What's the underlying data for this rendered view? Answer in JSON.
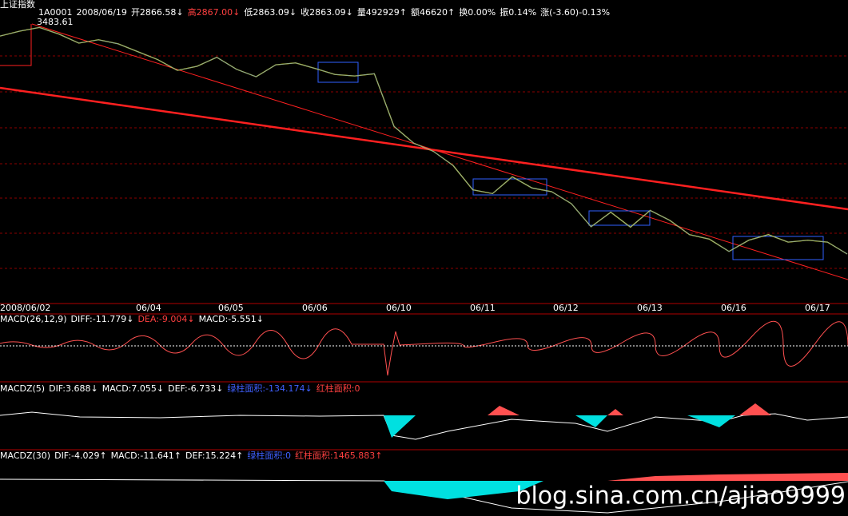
{
  "header": {
    "title": "上证指数",
    "quote": [
      {
        "text": "1A0001",
        "color": "#ffffff"
      },
      {
        "text": "2008/06/19",
        "color": "#ffffff"
      },
      {
        "text": "开2866.58↓",
        "color": "#ffffff"
      },
      {
        "text": "高2867.00↓",
        "color": "#ff4040"
      },
      {
        "text": "低2863.09↓",
        "color": "#ffffff"
      },
      {
        "text": "收2863.09↓",
        "color": "#ffffff"
      },
      {
        "text": "量492929↑",
        "color": "#ffffff"
      },
      {
        "text": "额46620↑",
        "color": "#ffffff"
      },
      {
        "text": "换0.00%",
        "color": "#ffffff"
      },
      {
        "text": "振0.14%",
        "color": "#ffffff"
      },
      {
        "text": "涨(-3.60)-0.13%",
        "color": "#ffffff"
      }
    ]
  },
  "price": {
    "peak_label": "3483.61",
    "peak": 3483.61,
    "close": 2863.09,
    "values": [
      3447,
      3460,
      3470,
      3452,
      3428,
      3437,
      3426,
      3405,
      3384,
      3355,
      3366,
      3390,
      3358,
      3338,
      3370,
      3375,
      3360,
      3344,
      3340,
      3346,
      3205,
      3160,
      3138,
      3100,
      3035,
      3025,
      3070,
      3040,
      3030,
      2998,
      2936,
      2975,
      2935,
      2980,
      2953,
      2915,
      2903,
      2870,
      2900,
      2915,
      2895,
      2900,
      2895,
      2863.09
    ],
    "color": "#ffff00"
  },
  "dates": [
    "2008/06/02",
    "06/04",
    "06/05",
    "06/06",
    "06/10",
    "06/11",
    "06/12",
    "06/13",
    "06/16",
    "06/17"
  ],
  "panels": [
    {
      "items": [
        {
          "text": "MACD(26,12,9)",
          "color": "#ffffff"
        },
        {
          "text": "DIFF:-11.779↓",
          "color": "#ffffff"
        },
        {
          "text": "DEA:-9.004↓",
          "color": "#ff4040"
        },
        {
          "text": "MACD:-5.551↓",
          "color": "#ffffff"
        }
      ]
    },
    {
      "items": [
        {
          "text": "MACDZ(5)",
          "color": "#ffffff"
        },
        {
          "text": "DIF:3.688↓",
          "color": "#ffffff"
        },
        {
          "text": "MACD:7.055↓",
          "color": "#ffffff"
        },
        {
          "text": "DEF:-6.733↓",
          "color": "#ffffff"
        },
        {
          "text": "绿柱面积:-134.174↓",
          "color": "#4060ff"
        },
        {
          "text": "红柱面积:0",
          "color": "#ff4040"
        }
      ]
    },
    {
      "items": [
        {
          "text": "MACDZ(30)",
          "color": "#ffffff"
        },
        {
          "text": "DIF:-4.029↑",
          "color": "#ffffff"
        },
        {
          "text": "MACD:-11.641↑",
          "color": "#ffffff"
        },
        {
          "text": "DEF:15.224↑",
          "color": "#ffffff"
        },
        {
          "text": "绿柱面积:0",
          "color": "#4060ff"
        },
        {
          "text": "红柱面积:1465.883↑",
          "color": "#ff4040"
        }
      ]
    }
  ],
  "watermark": "blog.sina.com.cn/ajiao9999"
}
